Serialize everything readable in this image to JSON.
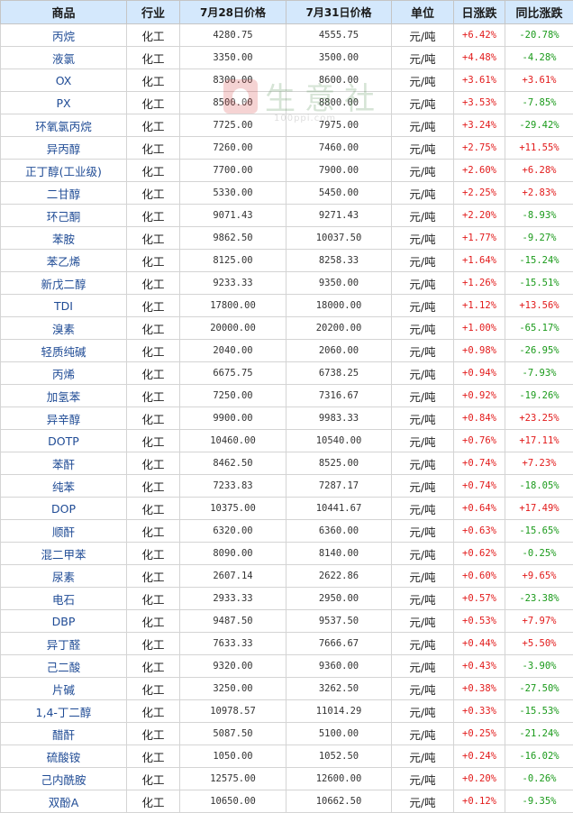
{
  "watermark": {
    "text": "生意社",
    "url": "100ppi.com"
  },
  "table": {
    "headers": {
      "name": "商品",
      "industry": "行业",
      "price_0728": "7月28日价格",
      "price_0731": "7月31日价格",
      "unit": "单位",
      "day_change": "日涨跌",
      "yoy_change": "同比涨跌"
    },
    "rows": [
      {
        "name": "丙烷",
        "industry": "化工",
        "p1": "4280.75",
        "p2": "4555.75",
        "unit": "元/吨",
        "day": "+6.42%",
        "yoy": "-20.78%"
      },
      {
        "name": "液氯",
        "industry": "化工",
        "p1": "3350.00",
        "p2": "3500.00",
        "unit": "元/吨",
        "day": "+4.48%",
        "yoy": "-4.28%"
      },
      {
        "name": "OX",
        "industry": "化工",
        "p1": "8300.00",
        "p2": "8600.00",
        "unit": "元/吨",
        "day": "+3.61%",
        "yoy": "+3.61%"
      },
      {
        "name": "PX",
        "industry": "化工",
        "p1": "8500.00",
        "p2": "8800.00",
        "unit": "元/吨",
        "day": "+3.53%",
        "yoy": "-7.85%"
      },
      {
        "name": "环氧氯丙烷",
        "industry": "化工",
        "p1": "7725.00",
        "p2": "7975.00",
        "unit": "元/吨",
        "day": "+3.24%",
        "yoy": "-29.42%"
      },
      {
        "name": "异丙醇",
        "industry": "化工",
        "p1": "7260.00",
        "p2": "7460.00",
        "unit": "元/吨",
        "day": "+2.75%",
        "yoy": "+11.55%"
      },
      {
        "name": "正丁醇(工业级)",
        "industry": "化工",
        "p1": "7700.00",
        "p2": "7900.00",
        "unit": "元/吨",
        "day": "+2.60%",
        "yoy": "+6.28%"
      },
      {
        "name": "二甘醇",
        "industry": "化工",
        "p1": "5330.00",
        "p2": "5450.00",
        "unit": "元/吨",
        "day": "+2.25%",
        "yoy": "+2.83%"
      },
      {
        "name": "环己酮",
        "industry": "化工",
        "p1": "9071.43",
        "p2": "9271.43",
        "unit": "元/吨",
        "day": "+2.20%",
        "yoy": "-8.93%"
      },
      {
        "name": "苯胺",
        "industry": "化工",
        "p1": "9862.50",
        "p2": "10037.50",
        "unit": "元/吨",
        "day": "+1.77%",
        "yoy": "-9.27%"
      },
      {
        "name": "苯乙烯",
        "industry": "化工",
        "p1": "8125.00",
        "p2": "8258.33",
        "unit": "元/吨",
        "day": "+1.64%",
        "yoy": "-15.24%"
      },
      {
        "name": "新戊二醇",
        "industry": "化工",
        "p1": "9233.33",
        "p2": "9350.00",
        "unit": "元/吨",
        "day": "+1.26%",
        "yoy": "-15.51%"
      },
      {
        "name": "TDI",
        "industry": "化工",
        "p1": "17800.00",
        "p2": "18000.00",
        "unit": "元/吨",
        "day": "+1.12%",
        "yoy": "+13.56%"
      },
      {
        "name": "溴素",
        "industry": "化工",
        "p1": "20000.00",
        "p2": "20200.00",
        "unit": "元/吨",
        "day": "+1.00%",
        "yoy": "-65.17%"
      },
      {
        "name": "轻质纯碱",
        "industry": "化工",
        "p1": "2040.00",
        "p2": "2060.00",
        "unit": "元/吨",
        "day": "+0.98%",
        "yoy": "-26.95%"
      },
      {
        "name": "丙烯",
        "industry": "化工",
        "p1": "6675.75",
        "p2": "6738.25",
        "unit": "元/吨",
        "day": "+0.94%",
        "yoy": "-7.93%"
      },
      {
        "name": "加氢苯",
        "industry": "化工",
        "p1": "7250.00",
        "p2": "7316.67",
        "unit": "元/吨",
        "day": "+0.92%",
        "yoy": "-19.26%"
      },
      {
        "name": "异辛醇",
        "industry": "化工",
        "p1": "9900.00",
        "p2": "9983.33",
        "unit": "元/吨",
        "day": "+0.84%",
        "yoy": "+23.25%"
      },
      {
        "name": "DOTP",
        "industry": "化工",
        "p1": "10460.00",
        "p2": "10540.00",
        "unit": "元/吨",
        "day": "+0.76%",
        "yoy": "+17.11%"
      },
      {
        "name": "苯酐",
        "industry": "化工",
        "p1": "8462.50",
        "p2": "8525.00",
        "unit": "元/吨",
        "day": "+0.74%",
        "yoy": "+7.23%"
      },
      {
        "name": "纯苯",
        "industry": "化工",
        "p1": "7233.83",
        "p2": "7287.17",
        "unit": "元/吨",
        "day": "+0.74%",
        "yoy": "-18.05%"
      },
      {
        "name": "DOP",
        "industry": "化工",
        "p1": "10375.00",
        "p2": "10441.67",
        "unit": "元/吨",
        "day": "+0.64%",
        "yoy": "+17.49%"
      },
      {
        "name": "顺酐",
        "industry": "化工",
        "p1": "6320.00",
        "p2": "6360.00",
        "unit": "元/吨",
        "day": "+0.63%",
        "yoy": "-15.65%"
      },
      {
        "name": "混二甲苯",
        "industry": "化工",
        "p1": "8090.00",
        "p2": "8140.00",
        "unit": "元/吨",
        "day": "+0.62%",
        "yoy": "-0.25%"
      },
      {
        "name": "尿素",
        "industry": "化工",
        "p1": "2607.14",
        "p2": "2622.86",
        "unit": "元/吨",
        "day": "+0.60%",
        "yoy": "+9.65%"
      },
      {
        "name": "电石",
        "industry": "化工",
        "p1": "2933.33",
        "p2": "2950.00",
        "unit": "元/吨",
        "day": "+0.57%",
        "yoy": "-23.38%"
      },
      {
        "name": "DBP",
        "industry": "化工",
        "p1": "9487.50",
        "p2": "9537.50",
        "unit": "元/吨",
        "day": "+0.53%",
        "yoy": "+7.97%"
      },
      {
        "name": "异丁醛",
        "industry": "化工",
        "p1": "7633.33",
        "p2": "7666.67",
        "unit": "元/吨",
        "day": "+0.44%",
        "yoy": "+5.50%"
      },
      {
        "name": "己二酸",
        "industry": "化工",
        "p1": "9320.00",
        "p2": "9360.00",
        "unit": "元/吨",
        "day": "+0.43%",
        "yoy": "-3.90%"
      },
      {
        "name": "片碱",
        "industry": "化工",
        "p1": "3250.00",
        "p2": "3262.50",
        "unit": "元/吨",
        "day": "+0.38%",
        "yoy": "-27.50%"
      },
      {
        "name": "1,4-丁二醇",
        "industry": "化工",
        "p1": "10978.57",
        "p2": "11014.29",
        "unit": "元/吨",
        "day": "+0.33%",
        "yoy": "-15.53%"
      },
      {
        "name": "醋酐",
        "industry": "化工",
        "p1": "5087.50",
        "p2": "5100.00",
        "unit": "元/吨",
        "day": "+0.25%",
        "yoy": "-21.24%"
      },
      {
        "name": "硫酸铵",
        "industry": "化工",
        "p1": "1050.00",
        "p2": "1052.50",
        "unit": "元/吨",
        "day": "+0.24%",
        "yoy": "-16.02%"
      },
      {
        "name": "己内酰胺",
        "industry": "化工",
        "p1": "12575.00",
        "p2": "12600.00",
        "unit": "元/吨",
        "day": "+0.20%",
        "yoy": "-0.26%"
      },
      {
        "name": "双酚A",
        "industry": "化工",
        "p1": "10650.00",
        "p2": "10662.50",
        "unit": "元/吨",
        "day": "+0.12%",
        "yoy": "-9.35%"
      }
    ]
  }
}
